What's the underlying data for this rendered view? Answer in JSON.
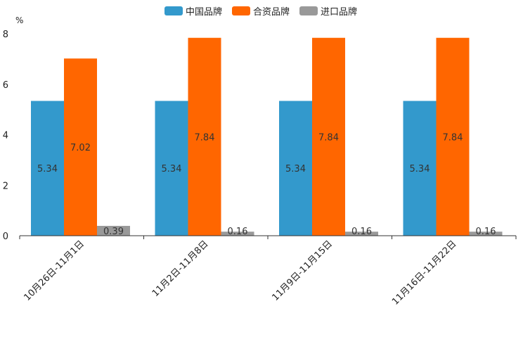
{
  "chart_data": {
    "type": "bar",
    "title": "",
    "ylabel": "%",
    "xlabel": "",
    "ylim": [
      0,
      8
    ],
    "yticks": [
      0,
      2,
      4,
      6,
      8
    ],
    "categories": [
      "10月26日-11月1日",
      "11月2日-11月8日",
      "11月9日-11月15日",
      "11月16日-11月22日"
    ],
    "series": [
      {
        "name": "中国品牌",
        "color": "#3399cc",
        "values": [
          5.34,
          5.34,
          5.34,
          5.34
        ],
        "labels": [
          "5.34",
          "5.34",
          "5.34",
          "5.34"
        ]
      },
      {
        "name": "合资品牌",
        "color": "#ff6600",
        "values": [
          7.02,
          7.84,
          7.84,
          7.84
        ],
        "labels": [
          "7.02",
          "7.84",
          "7.84",
          "7.84"
        ]
      },
      {
        "name": "进口品牌",
        "color": "#999999",
        "values": [
          0.39,
          0.16,
          0.16,
          0.16
        ],
        "labels": [
          "0.39",
          "0.16",
          "0.16",
          "0.16"
        ]
      }
    ],
    "legend_position": "top-center",
    "grid": false
  }
}
